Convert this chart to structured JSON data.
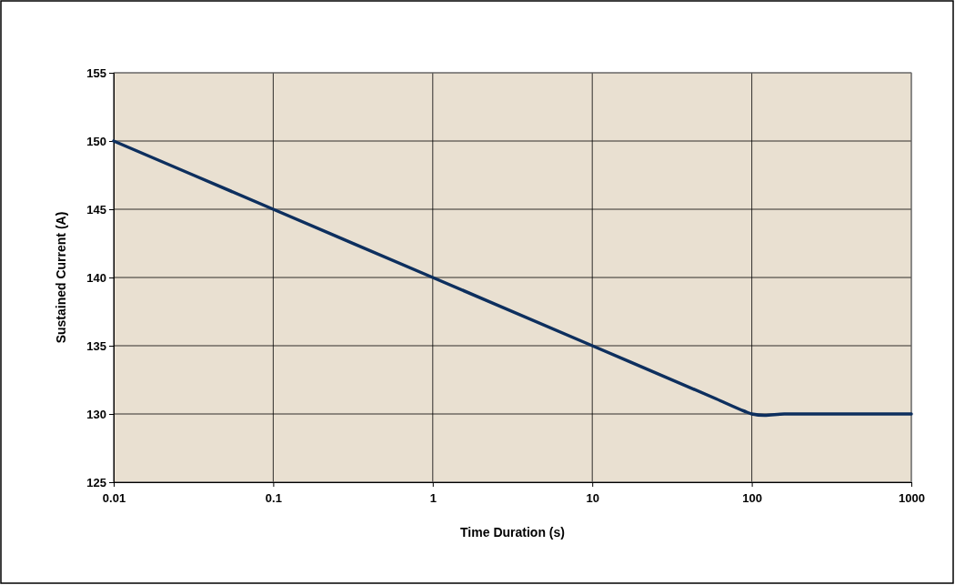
{
  "chart_data": {
    "type": "line",
    "xlabel": "Time Duration (s)",
    "ylabel": "Sustained Current (A)",
    "log": "x",
    "grid": true,
    "xlim": [
      0.01,
      1000
    ],
    "xticks": [
      0.01,
      0.1,
      1,
      10,
      100,
      1000
    ],
    "ylim": [
      125,
      155
    ],
    "yticks": [
      125,
      130,
      135,
      140,
      145,
      150,
      155
    ],
    "series": [
      {
        "color": "#0d2f5e",
        "x": [
          0.01,
          0.1,
          1,
          10,
          60,
          90,
          100,
          120,
          160,
          1000
        ],
        "values": [
          150,
          145,
          140,
          135,
          131.1,
          130.2,
          130,
          129.9,
          130,
          130
        ]
      }
    ]
  }
}
